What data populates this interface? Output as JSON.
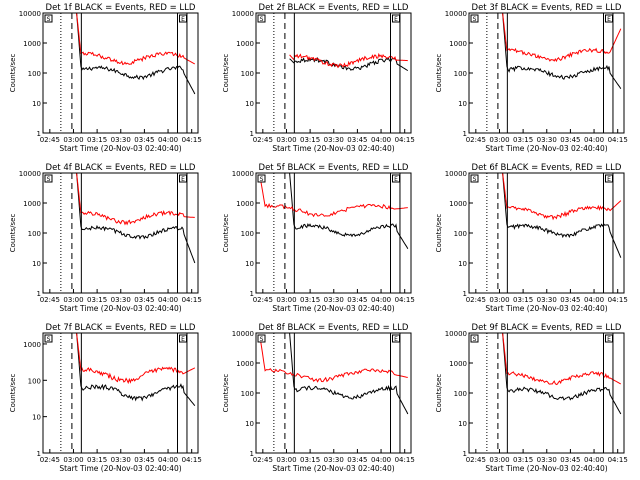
{
  "chart_data": [
    {
      "type": "line",
      "title": "Det 1f BLACK = Events, RED = LLD",
      "xlabel": "Start Time (20-Nov-03 02:40:40)",
      "ylabel": "Counts/sec",
      "x_ticks": [
        "02:45",
        "03:00",
        "03:15",
        "03:30",
        "03:45",
        "04:00",
        "04:15"
      ],
      "y_ticks": [
        "1",
        "10",
        "100",
        "1000",
        "10000"
      ],
      "ylim": [
        1,
        10000
      ],
      "y_scale": "log",
      "grid": false,
      "markers": {
        "dotted": "02:52",
        "dashed": "02:59",
        "solid": [
          "03:05",
          "04:06",
          "04:12"
        ],
        "box_labels": [
          "S",
          "E"
        ]
      },
      "series": [
        {
          "name": "BLACK = Events",
          "profile": {
            "start": "03:02",
            "end": "04:17",
            "start_level": 10000,
            "level": 110,
            "end_level": 20
          }
        },
        {
          "name": "RED = LLD",
          "profile": {
            "start": "03:02",
            "end": "04:17",
            "start_level": 10000,
            "level": 330,
            "end_level": 200
          }
        }
      ]
    },
    {
      "type": "line",
      "title": "Det 2f BLACK = Events, RED = LLD",
      "xlabel": "Start Time (20-Nov-03 02:40:40)",
      "ylabel": "Counts/sec",
      "x_ticks": [
        "02:45",
        "03:00",
        "03:15",
        "03:30",
        "03:45",
        "04:00",
        "04:15"
      ],
      "y_ticks": [
        "1",
        "10",
        "100",
        "1000",
        "10000"
      ],
      "ylim": [
        1,
        10000
      ],
      "y_scale": "log",
      "grid": false,
      "markers": {
        "dotted": "02:52",
        "dashed": "02:59",
        "solid": [
          "03:05",
          "04:06",
          "04:12"
        ],
        "box_labels": [
          "S",
          "E"
        ]
      },
      "series": [
        {
          "name": "BLACK = Events",
          "profile": {
            "start": "03:02",
            "end": "04:17",
            "start_level": 300,
            "level": 210,
            "end_level": 120
          }
        },
        {
          "name": "RED = LLD",
          "profile": {
            "start": "03:02",
            "end": "04:17",
            "start_level": 400,
            "level": 270,
            "end_level": 260
          }
        }
      ]
    },
    {
      "type": "line",
      "title": "Det 3f BLACK = Events, RED = LLD",
      "xlabel": "Start Time (20-Nov-03 02:40:40)",
      "ylabel": "Counts/sec",
      "x_ticks": [
        "02:45",
        "03:00",
        "03:15",
        "03:30",
        "03:45",
        "04:00",
        "04:15"
      ],
      "y_ticks": [
        "1",
        "10",
        "100",
        "1000",
        "10000"
      ],
      "ylim": [
        1,
        10000
      ],
      "y_scale": "log",
      "grid": false,
      "markers": {
        "dotted": "02:52",
        "dashed": "02:59",
        "solid": [
          "03:05",
          "04:06",
          "04:12"
        ],
        "box_labels": [
          "S",
          "E"
        ]
      },
      "series": [
        {
          "name": "BLACK = Events",
          "profile": {
            "start": "03:02",
            "end": "04:17",
            "start_level": 10000,
            "level": 110,
            "end_level": 30
          }
        },
        {
          "name": "RED = LLD",
          "profile": {
            "start": "03:02",
            "end": "04:17",
            "start_level": 10000,
            "level": 420,
            "end_level": 3000
          }
        }
      ]
    },
    {
      "type": "line",
      "title": "Det 4f BLACK = Events, RED = LLD",
      "xlabel": "Start Time (20-Nov-03 02:40:40)",
      "ylabel": "Counts/sec",
      "x_ticks": [
        "02:45",
        "03:00",
        "03:15",
        "03:30",
        "03:45",
        "04:00",
        "04:15"
      ],
      "y_ticks": [
        "1",
        "10",
        "100",
        "1000",
        "10000"
      ],
      "ylim": [
        1,
        10000
      ],
      "y_scale": "log",
      "grid": false,
      "markers": {
        "dotted": "02:52",
        "dashed": "02:59",
        "solid": [
          "03:05",
          "04:06",
          "04:12"
        ],
        "box_labels": [
          "S",
          "E"
        ]
      },
      "series": [
        {
          "name": "BLACK = Events",
          "profile": {
            "start": "03:02",
            "end": "04:17",
            "start_level": 10000,
            "level": 110,
            "end_level": 10
          }
        },
        {
          "name": "RED = LLD",
          "profile": {
            "start": "03:02",
            "end": "04:17",
            "start_level": 10000,
            "level": 350,
            "end_level": 330
          }
        }
      ]
    },
    {
      "type": "line",
      "title": "Det 5f BLACK = Events, RED = LLD",
      "xlabel": "Start Time (20-Nov-03 02:40:40)",
      "ylabel": "Counts/sec",
      "x_ticks": [
        "02:45",
        "03:00",
        "03:15",
        "03:30",
        "03:45",
        "04:00",
        "04:15"
      ],
      "y_ticks": [
        "1",
        "10",
        "100",
        "1000",
        "10000"
      ],
      "ylim": [
        1,
        10000
      ],
      "y_scale": "log",
      "grid": false,
      "markers": {
        "dotted": "02:52",
        "dashed": "02:59",
        "solid": [
          "03:05",
          "04:06",
          "04:12"
        ],
        "box_labels": [
          "S",
          "E"
        ]
      },
      "series": [
        {
          "name": "BLACK = Events",
          "profile": {
            "start": "03:02",
            "end": "04:17",
            "start_level": 10000,
            "level": 130,
            "end_level": 30
          }
        },
        {
          "name": "RED = LLD",
          "profile": {
            "start": "02:43",
            "end": "04:17",
            "start_level": 9000,
            "level": 620,
            "end_level": 700
          }
        }
      ]
    },
    {
      "type": "line",
      "title": "Det 6f BLACK = Events, RED = LLD",
      "xlabel": "Start Time (20-Nov-03 02:40:40)",
      "ylabel": "Counts/sec",
      "x_ticks": [
        "02:45",
        "03:00",
        "03:15",
        "03:30",
        "03:45",
        "04:00",
        "04:15"
      ],
      "y_ticks": [
        "1",
        "10",
        "100",
        "1000",
        "10000"
      ],
      "ylim": [
        1,
        10000
      ],
      "y_scale": "log",
      "grid": false,
      "markers": {
        "dotted": "02:52",
        "dashed": "02:59",
        "solid": [
          "03:05",
          "04:06",
          "04:12"
        ],
        "box_labels": [
          "S",
          "E"
        ]
      },
      "series": [
        {
          "name": "BLACK = Events",
          "profile": {
            "start": "03:02",
            "end": "04:17",
            "start_level": 10000,
            "level": 130,
            "end_level": 15
          }
        },
        {
          "name": "RED = LLD",
          "profile": {
            "start": "03:02",
            "end": "04:17",
            "start_level": 10000,
            "level": 520,
            "end_level": 1200
          }
        }
      ]
    },
    {
      "type": "line",
      "title": "Det 7f BLACK = Events, RED = LLD",
      "xlabel": "Start Time (20-Nov-03 02:40:40)",
      "ylabel": "Counts/sec",
      "x_ticks": [
        "02:45",
        "03:00",
        "03:15",
        "03:30",
        "03:45",
        "04:00",
        "04:15"
      ],
      "y_ticks": [
        "1",
        "10",
        "100",
        "1000"
      ],
      "ylim": [
        1,
        2000
      ],
      "y_scale": "log",
      "grid": false,
      "markers": {
        "dotted": "02:52",
        "dashed": "02:59",
        "solid": [
          "03:05",
          "04:06",
          "04:12"
        ],
        "box_labels": [
          "S",
          "E"
        ]
      },
      "series": [
        {
          "name": "BLACK = Events",
          "profile": {
            "start": "03:02",
            "end": "04:17",
            "start_level": 2000,
            "level": 50,
            "end_level": 20
          }
        },
        {
          "name": "RED = LLD",
          "profile": {
            "start": "03:02",
            "end": "04:17",
            "start_level": 2000,
            "level": 150,
            "end_level": 220
          }
        }
      ]
    },
    {
      "type": "line",
      "title": "Det 8f BLACK = Events, RED = LLD",
      "xlabel": "Start Time (20-Nov-03 02:40:40)",
      "ylabel": "Counts/sec",
      "x_ticks": [
        "02:45",
        "03:00",
        "03:15",
        "03:30",
        "03:45",
        "04:00",
        "04:15"
      ],
      "y_ticks": [
        "1",
        "10",
        "100",
        "1000",
        "10000"
      ],
      "ylim": [
        1,
        10000
      ],
      "y_scale": "log",
      "grid": false,
      "markers": {
        "dotted": "02:52",
        "dashed": "02:59",
        "solid": [
          "03:05",
          "04:06",
          "04:12"
        ],
        "box_labels": [
          "S",
          "E"
        ]
      },
      "series": [
        {
          "name": "BLACK = Events",
          "profile": {
            "start": "03:02",
            "end": "04:17",
            "start_level": 10000,
            "level": 110,
            "end_level": 20
          }
        },
        {
          "name": "RED = LLD",
          "profile": {
            "start": "02:43",
            "end": "04:17",
            "start_level": 9000,
            "level": 420,
            "end_level": 330
          }
        }
      ]
    },
    {
      "type": "line",
      "title": "Det 9f BLACK = Events, RED = LLD",
      "xlabel": "Start Time (20-Nov-03 02:40:40)",
      "ylabel": "Counts/sec",
      "x_ticks": [
        "02:45",
        "03:00",
        "03:15",
        "03:30",
        "03:45",
        "04:00",
        "04:15"
      ],
      "y_ticks": [
        "1",
        "10",
        "100",
        "1000",
        "10000"
      ],
      "ylim": [
        1,
        10000
      ],
      "y_scale": "log",
      "grid": false,
      "markers": {
        "dotted": "02:52",
        "dashed": "02:59",
        "solid": [
          "03:05",
          "04:06",
          "04:12"
        ],
        "box_labels": [
          "S",
          "E"
        ]
      },
      "series": [
        {
          "name": "BLACK = Events",
          "profile": {
            "start": "03:02",
            "end": "04:17",
            "start_level": 10000,
            "level": 100,
            "end_level": 20
          }
        },
        {
          "name": "RED = LLD",
          "profile": {
            "start": "03:02",
            "end": "04:17",
            "start_level": 10000,
            "level": 330,
            "end_level": 200
          }
        }
      ]
    }
  ],
  "colors": {
    "events": "#000000",
    "lld": "#ff0000",
    "axes": "#000000"
  }
}
